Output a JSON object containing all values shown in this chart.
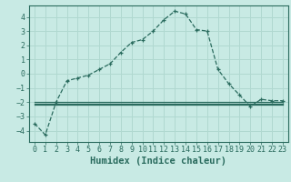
{
  "title": "",
  "xlabel": "Humidex (Indice chaleur)",
  "background_color": "#c8eae4",
  "grid_color": "#b0d8d0",
  "line_color": "#2a6b5e",
  "x": [
    0,
    1,
    2,
    3,
    4,
    5,
    6,
    7,
    8,
    9,
    10,
    11,
    12,
    13,
    14,
    15,
    16,
    17,
    18,
    19,
    20,
    21,
    22,
    23
  ],
  "y_main": [
    -3.5,
    -4.3,
    -2.0,
    -0.5,
    -0.3,
    -0.1,
    0.3,
    0.7,
    1.5,
    2.2,
    2.4,
    3.0,
    3.8,
    4.4,
    4.2,
    3.1,
    3.0,
    0.3,
    -0.7,
    -1.5,
    -2.3,
    -1.8,
    -1.9,
    -1.9
  ],
  "y_flat1": [
    -2.0,
    -2.0,
    -2.0,
    -2.0,
    -2.0,
    -2.0,
    -2.0,
    -2.0,
    -2.0,
    -2.0,
    -2.0,
    -2.0,
    -2.0,
    -2.0,
    -2.0,
    -2.0,
    -2.0,
    -2.0,
    -2.0,
    -2.0,
    -2.0,
    -2.0,
    -2.0,
    -2.0
  ],
  "y_flat2": [
    -2.1,
    -2.1,
    -2.1,
    -2.1,
    -2.1,
    -2.1,
    -2.1,
    -2.1,
    -2.1,
    -2.1,
    -2.1,
    -2.1,
    -2.1,
    -2.1,
    -2.1,
    -2.1,
    -2.1,
    -2.1,
    -2.1,
    -2.1,
    -2.1,
    -2.1,
    -2.1,
    -2.1
  ],
  "y_flat3": [
    -2.2,
    -2.2,
    -2.2,
    -2.2,
    -2.2,
    -2.2,
    -2.2,
    -2.2,
    -2.2,
    -2.2,
    -2.2,
    -2.2,
    -2.2,
    -2.2,
    -2.2,
    -2.2,
    -2.2,
    -2.2,
    -2.2,
    -2.2,
    -2.2,
    -2.2,
    -2.2,
    -2.2
  ],
  "ylim": [
    -4.8,
    4.8
  ],
  "xlim": [
    -0.5,
    23.5
  ],
  "yticks": [
    -4,
    -3,
    -2,
    -1,
    0,
    1,
    2,
    3,
    4
  ],
  "xticks": [
    0,
    1,
    2,
    3,
    4,
    5,
    6,
    7,
    8,
    9,
    10,
    11,
    12,
    13,
    14,
    15,
    16,
    17,
    18,
    19,
    20,
    21,
    22,
    23
  ],
  "tick_fontsize": 6.0,
  "xlabel_fontsize": 7.5
}
